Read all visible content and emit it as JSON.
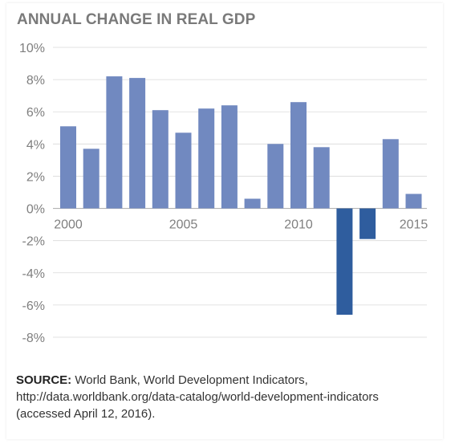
{
  "colors": {
    "positive_bar": "#7189c0",
    "negative_bar": "#2f5d9e",
    "gridline": "#d9d9d9",
    "baseline": "#b3b3b3",
    "text_gray": "#7f7f7f"
  },
  "source": {
    "label": "SOURCE:",
    "text": "World Bank, World Development Indicators, http://data.worldbank.org/data-catalog/world-development-indicators (accessed April 12, 2016)."
  },
  "chart_data": {
    "type": "bar",
    "title": "ANNUAL CHANGE IN REAL GDP",
    "xlabel": "",
    "ylabel": "",
    "categories": [
      2000,
      2001,
      2002,
      2003,
      2004,
      2005,
      2006,
      2007,
      2008,
      2009,
      2010,
      2011,
      2012,
      2013,
      2014,
      2015
    ],
    "values": [
      5.1,
      3.7,
      8.2,
      8.1,
      6.1,
      4.7,
      6.2,
      6.4,
      0.6,
      4.0,
      6.6,
      3.8,
      -6.6,
      -1.9,
      4.3,
      0.9
    ],
    "x_tick_labels": [
      "2000",
      "2005",
      "2010",
      "2015"
    ],
    "y_tick_labels": [
      "10%",
      "8%",
      "6%",
      "4%",
      "2%",
      "0%",
      "-2%",
      "-4%",
      "-6%",
      "-8%"
    ],
    "y_ticks": [
      10,
      8,
      6,
      4,
      2,
      0,
      -2,
      -4,
      -6,
      -8
    ],
    "ylim": [
      -8,
      10
    ],
    "grid": true,
    "legend": "none"
  }
}
